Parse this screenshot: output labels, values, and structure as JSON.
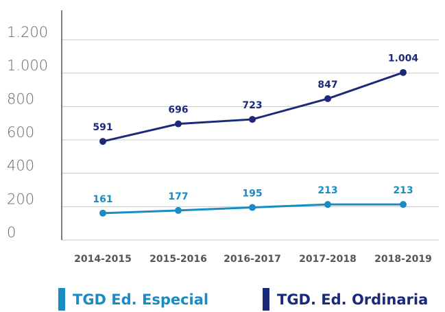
{
  "chart_data": {
    "type": "line",
    "categories": [
      "2014-2015",
      "2015-2016",
      "2016-2017",
      "2017-2018",
      "2018-2019"
    ],
    "series": [
      {
        "name": "TGD Ed. Especial",
        "color": "#1a8bc3",
        "values": [
          161,
          177,
          195,
          213,
          213
        ]
      },
      {
        "name": "TGD. Ed. Ordinaria",
        "color": "#1b2a78",
        "values": [
          591,
          696,
          723,
          847,
          1004
        ],
        "value_labels": [
          "591",
          "696",
          "723",
          "847",
          "1.004"
        ]
      }
    ],
    "ylim": [
      0,
      1200
    ],
    "yticks": [
      0,
      200,
      400,
      600,
      800,
      {
        "value": 1000,
        "label": "1.000"
      },
      {
        "value": 1200,
        "label": "1.200"
      }
    ],
    "grid": true
  }
}
